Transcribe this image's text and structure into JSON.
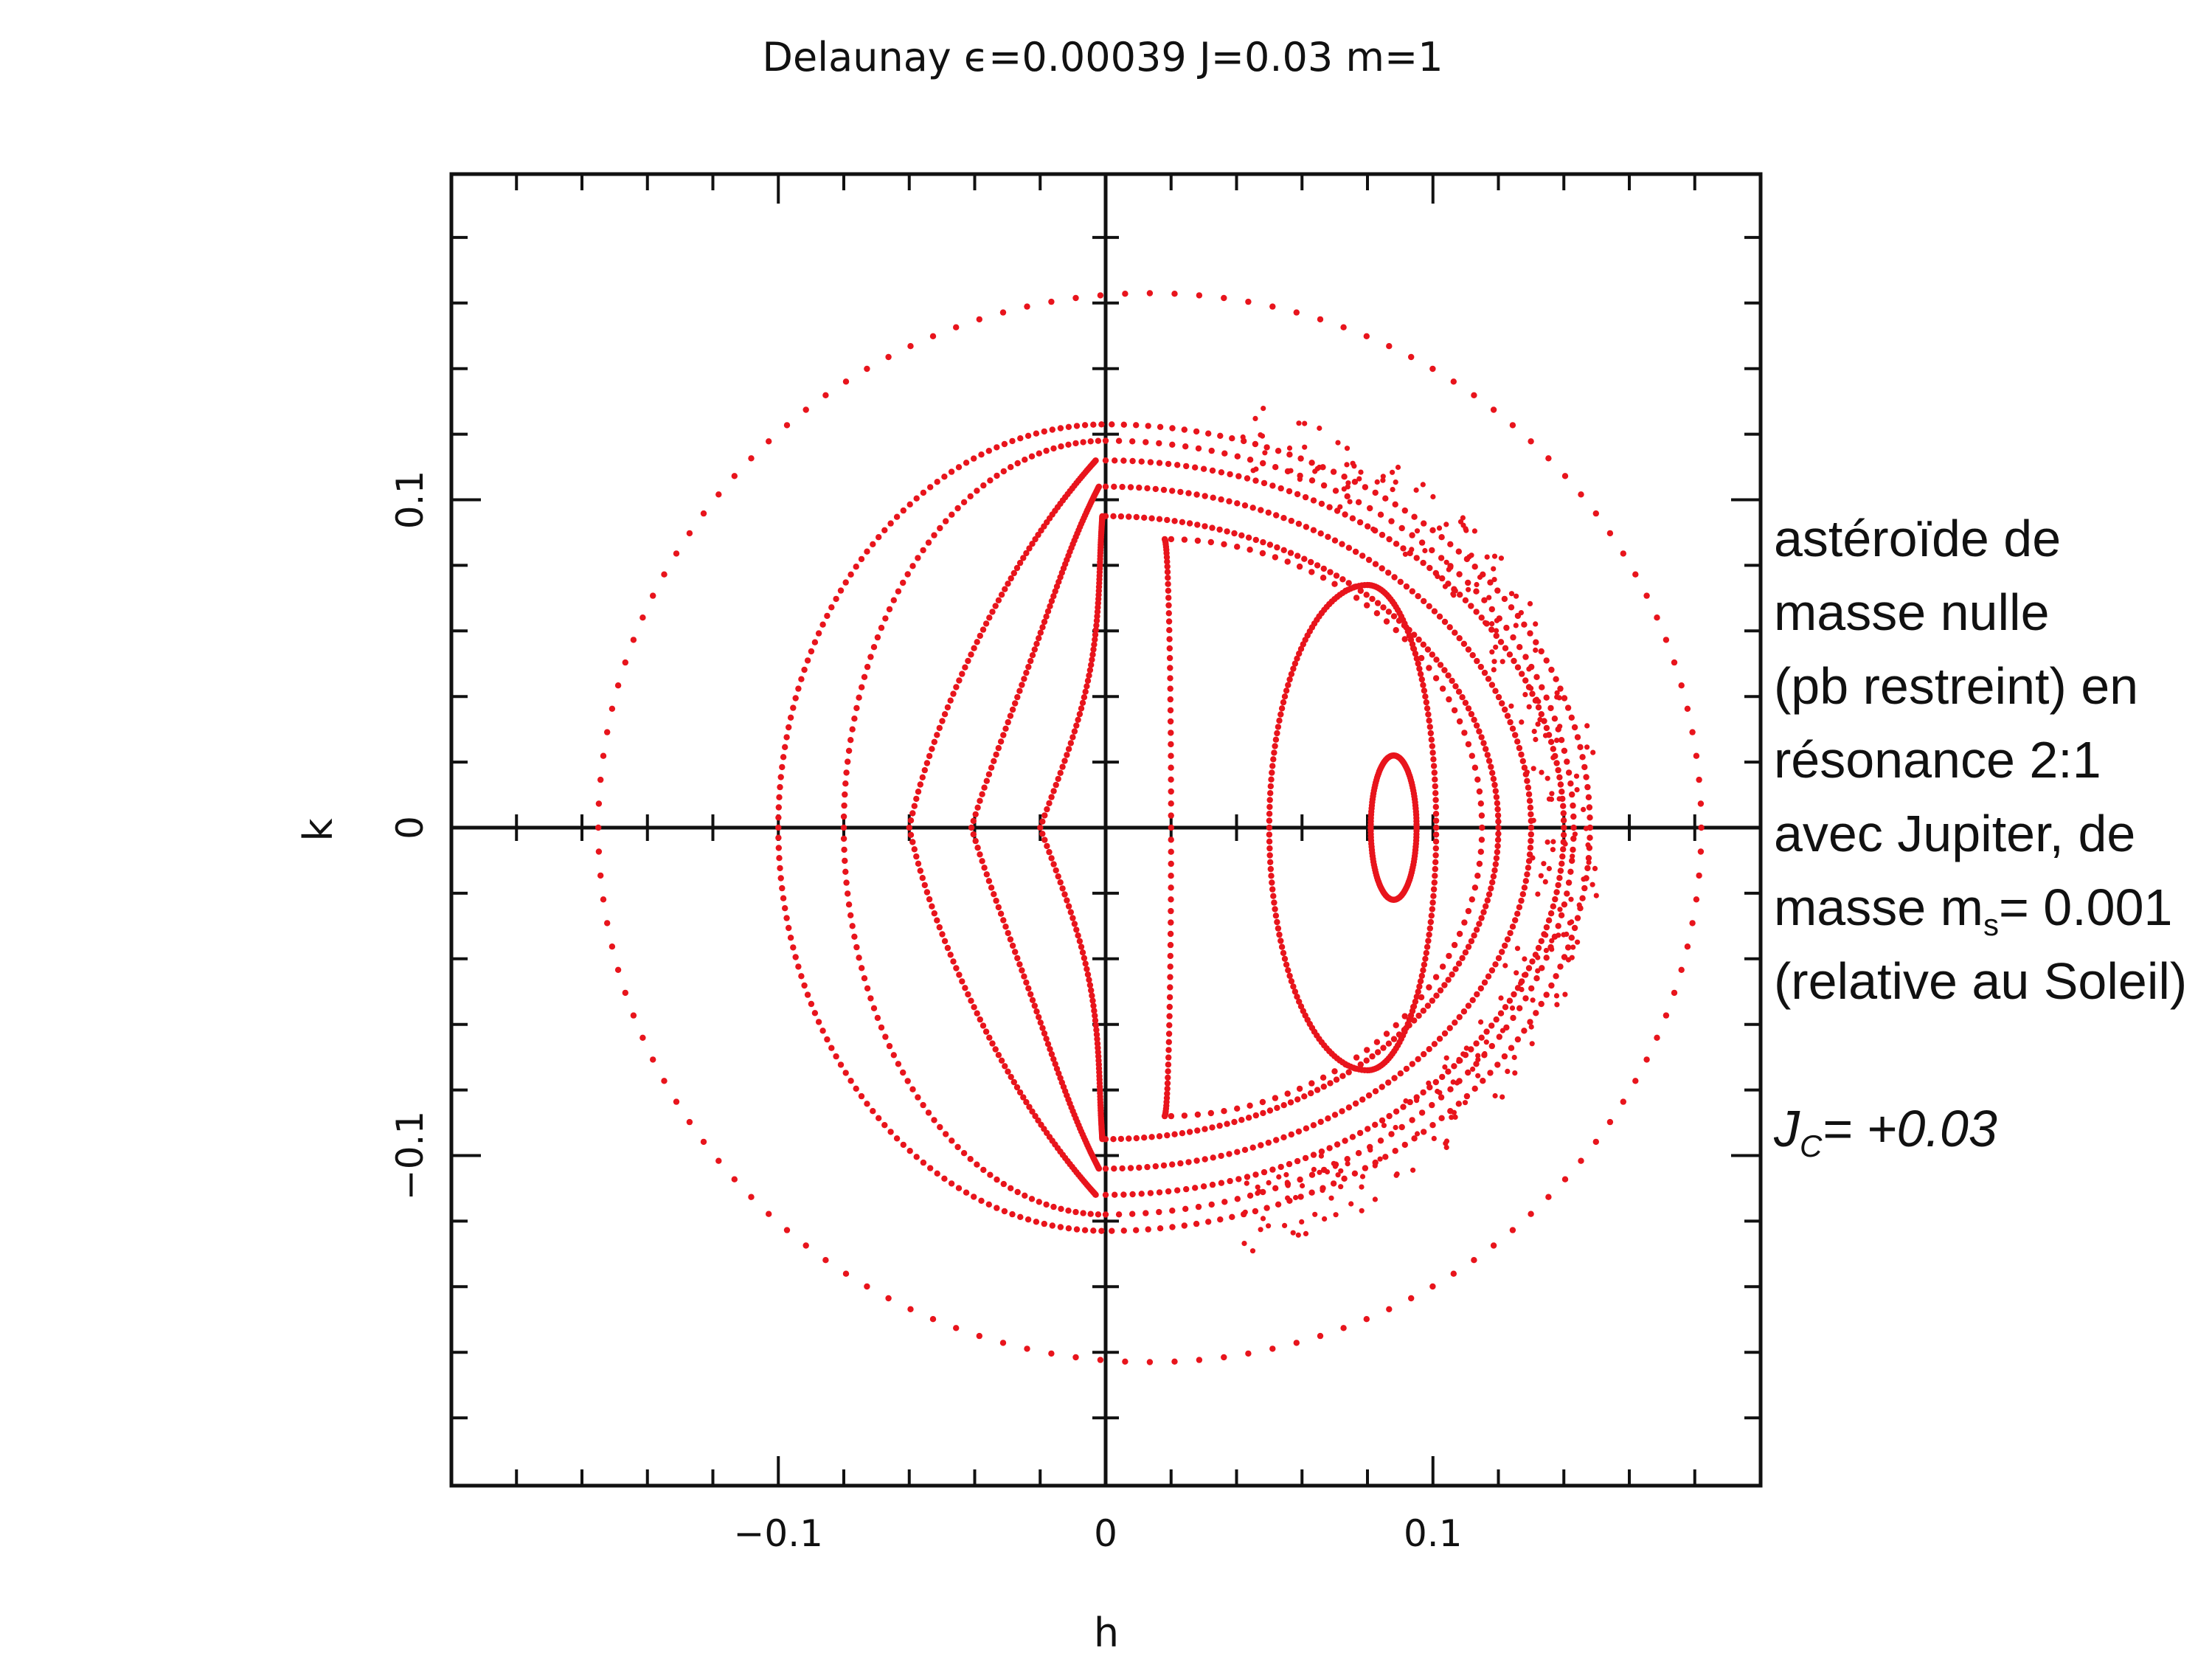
{
  "chart_data": {
    "type": "scatter",
    "title": "Delaunay ϵ=0.00039 J=0.03 m=1",
    "xlabel": "h",
    "ylabel": "k",
    "xlim": [
      -0.2,
      0.2
    ],
    "ylim": [
      -0.2,
      0.2
    ],
    "x_ticks": [
      {
        "value": -0.1,
        "label": "−0.1"
      },
      {
        "value": 0,
        "label": "0"
      },
      {
        "value": 0.1,
        "label": "0.1"
      }
    ],
    "y_ticks": [
      {
        "value": -0.1,
        "label": "−0.1"
      },
      {
        "value": 0,
        "label": "0"
      },
      {
        "value": 0.1,
        "label": "0.1"
      }
    ],
    "minor_tick_step": 0.02,
    "grid": false,
    "marker_color": "#e8141c",
    "series": [
      {
        "kind": "ellipse",
        "points": 140,
        "cx": 0.0135,
        "cy": 0,
        "rx": 0.1685,
        "ry": 0.163
      },
      {
        "kind": "resonant",
        "points": 250,
        "xmin": -0.1,
        "xright": 0.148,
        "ymax": 0.123,
        "kb": 0.0,
        "nudge": 0.0,
        "wavy": false
      },
      {
        "kind": "resonant",
        "points": 220,
        "xmin": -0.08,
        "xright": 0.143,
        "ymax": 0.118,
        "kb": 0.0,
        "nudge": 0.0,
        "wavy": false
      },
      {
        "kind": "resonant",
        "points": 320,
        "xmin": -0.06,
        "xright": 0.14,
        "ymax": 0.112,
        "kb": 0.0,
        "nudge": 0.008,
        "wavy": true
      },
      {
        "kind": "resonant",
        "points": 320,
        "xmin": -0.041,
        "xright": 0.13,
        "ymax": 0.104,
        "kb": 0.0,
        "nudge": 0.01,
        "wavy": true
      },
      {
        "kind": "resonant",
        "points": 320,
        "xmin": -0.02,
        "xright": 0.12,
        "ymax": 0.095,
        "kb": 0.0,
        "nudge": 0.011,
        "wavy": true
      },
      {
        "kind": "resonant",
        "points": 150,
        "xmin": 0.02,
        "xright": 0.115,
        "ymax": 0.088,
        "kb": 0.018,
        "nudge": 0.0,
        "wavy": false
      },
      {
        "kind": "loop",
        "points": 220,
        "cx": 0.08,
        "cy": 0,
        "rx_left": 0.03,
        "rx_right": 0.021,
        "ry": 0.074
      },
      {
        "kind": "loop",
        "points": 140,
        "cx": 0.088,
        "cy": 0,
        "rx_left": 0.007,
        "rx_right": 0.007,
        "ry": 0.022
      },
      {
        "kind": "chaotic",
        "points": 260,
        "r_min": 0.118,
        "r_max": 0.14,
        "angle_range_deg": [
          -78,
          78
        ],
        "center_h": 0.012
      }
    ]
  },
  "note": {
    "lines": [
      "astéroïde de",
      "masse nulle",
      "(pb restreint) en",
      "résonance 2:1",
      "avec Jupiter, de"
    ],
    "mass_prefix": "masse m",
    "mass_sub": "s",
    "mass_suffix": "= 0.001",
    "relative": "(relative au Soleil)",
    "jc_prefix": "J",
    "jc_sub": "C",
    "jc_suffix": "= +0.03"
  }
}
